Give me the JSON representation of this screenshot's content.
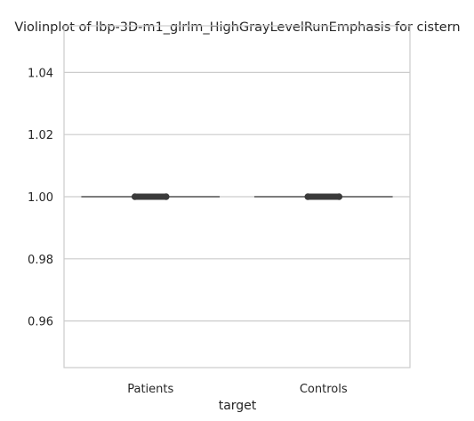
{
  "chart_data": {
    "type": "violin",
    "title": "Violinplot of lbp-3D-m1_glrlm_HighGrayLevelRunEmphasis for cistern",
    "xlabel": "target",
    "ylabel": "",
    "categories": [
      "Patients",
      "Controls"
    ],
    "ylim": [
      0.945,
      1.055
    ],
    "yticks": [
      0.96,
      0.98,
      1.0,
      1.02,
      1.04
    ],
    "ytick_labels": [
      "0.96",
      "0.98",
      "1.00",
      "1.02",
      "1.04"
    ],
    "series": [
      {
        "category": "Patients",
        "median": 1.0,
        "q1": 1.0,
        "q3": 1.0,
        "min": 1.0,
        "max": 1.0
      },
      {
        "category": "Controls",
        "median": 1.0,
        "q1": 1.0,
        "q3": 1.0,
        "min": 1.0,
        "max": 1.0
      }
    ],
    "grid": true,
    "colors": {
      "grid": "#cccccc",
      "violin": "#555555",
      "box": "#3a3a3a",
      "frame": "#cccccc"
    }
  }
}
